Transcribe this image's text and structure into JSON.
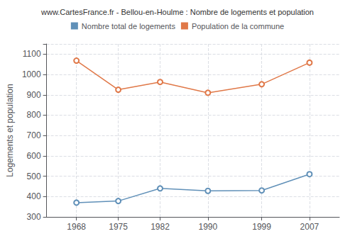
{
  "chart_data": {
    "type": "line",
    "title": "www.CartesFrance.fr - Bellou-en-Houlme : Nombre de logements et population",
    "ylabel": "Logements et population",
    "x": [
      1968,
      1975,
      1982,
      1990,
      1999,
      2007
    ],
    "series": [
      {
        "name": "Nombre total de logements",
        "color": "#6090b8",
        "marker": "circle",
        "values": [
          370,
          378,
          440,
          428,
          430,
          510
        ]
      },
      {
        "name": "Population de la commune",
        "color": "#e07848",
        "marker": "circle",
        "values": [
          1068,
          925,
          963,
          910,
          952,
          1058
        ]
      }
    ],
    "xlim": [
      1963,
      2012
    ],
    "xticks": [
      1968,
      1975,
      1982,
      1990,
      1999,
      2007
    ],
    "ylim": [
      300,
      1150
    ],
    "yticks": [
      300,
      400,
      500,
      600,
      700,
      800,
      900,
      1000,
      1100
    ],
    "grid": true,
    "legend": "top"
  }
}
